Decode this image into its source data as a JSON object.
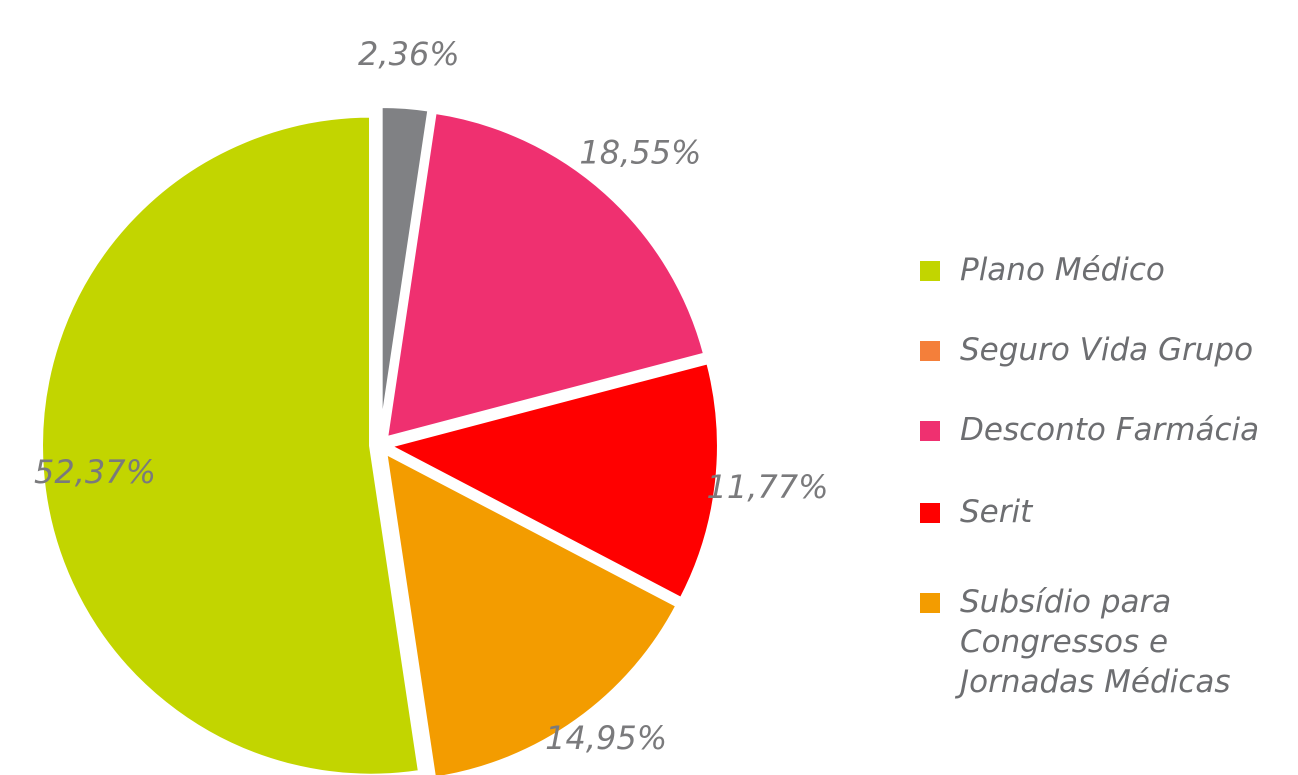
{
  "chart_data": {
    "type": "pie",
    "categories": [
      "Plano Médico",
      "Seguro Vida Grupo",
      "Desconto Farmácia",
      "Serit",
      "Subsídio para Congressos e Jornadas Médicas"
    ],
    "values": [
      52.37,
      2.36,
      18.55,
      11.77,
      14.95
    ],
    "value_labels": [
      "52,37%",
      "2,36%",
      "18,55%",
      "11,77%",
      "14,95%"
    ],
    "colors": [
      "#c2d500",
      "#808184",
      "#ef3070",
      "#ff0000",
      "#f39c00"
    ],
    "legend_colors": [
      "#c2d500",
      "#f47f3a",
      "#ef3070",
      "#ff0000",
      "#f39c00"
    ]
  }
}
